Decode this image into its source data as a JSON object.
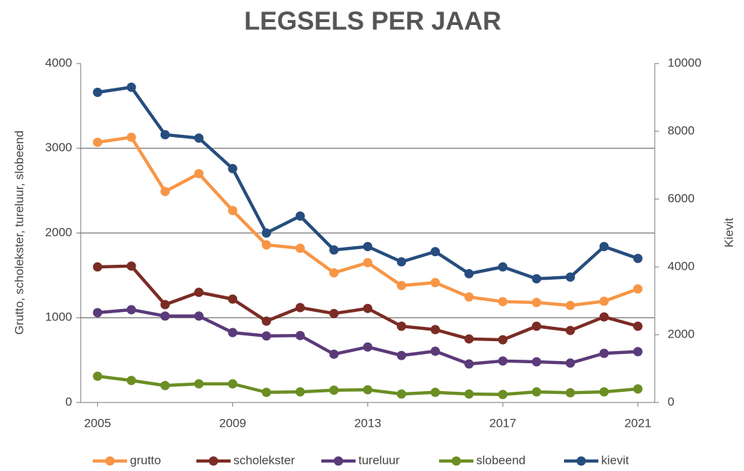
{
  "chart_data": {
    "type": "line",
    "title": "LEGSELS PER JAAR",
    "ylabel": "Grutto, scholekster, tureluur, slobeend",
    "y2label": "Kievit",
    "x": [
      2005,
      2006,
      2007,
      2008,
      2009,
      2010,
      2011,
      2012,
      2013,
      2014,
      2015,
      2016,
      2017,
      2018,
      2019,
      2020,
      2021
    ],
    "xlim": [
      2004.5,
      2021.5
    ],
    "xticks": [
      2005,
      2009,
      2013,
      2017,
      2021
    ],
    "ylim": [
      0,
      4000
    ],
    "yticks": [
      0,
      1000,
      2000,
      3000,
      4000
    ],
    "y2lim": [
      0,
      10000
    ],
    "y2ticks": [
      0,
      2000,
      4000,
      6000,
      8000,
      10000
    ],
    "grid": true,
    "legend": "bottom",
    "series": [
      {
        "name": "grutto",
        "color": "#f79646",
        "values": [
          3070,
          3130,
          2490,
          2700,
          2265,
          1860,
          1820,
          1530,
          1650,
          1380,
          1415,
          1245,
          1190,
          1180,
          1145,
          1195,
          1340
        ]
      },
      {
        "name": "scholekster",
        "color": "#7b2c24",
        "values": [
          1600,
          1610,
          1155,
          1300,
          1220,
          960,
          1120,
          1050,
          1110,
          900,
          860,
          750,
          740,
          900,
          850,
          1010,
          900
        ]
      },
      {
        "name": "tureluur",
        "color": "#5b3a7a",
        "values": [
          1060,
          1095,
          1020,
          1020,
          825,
          785,
          790,
          570,
          655,
          555,
          605,
          455,
          490,
          480,
          465,
          580,
          600
        ]
      },
      {
        "name": "slobeend",
        "color": "#6b8e23",
        "values": [
          310,
          260,
          200,
          220,
          220,
          120,
          125,
          145,
          150,
          100,
          120,
          100,
          95,
          125,
          115,
          125,
          160
        ]
      },
      {
        "name": "kievit",
        "color": "#264d7e",
        "axis": "y2",
        "values": [
          9150,
          9300,
          7900,
          7800,
          6900,
          5000,
          5500,
          4500,
          4600,
          4150,
          4450,
          3800,
          4000,
          3650,
          3700,
          4600,
          4250
        ]
      }
    ]
  }
}
